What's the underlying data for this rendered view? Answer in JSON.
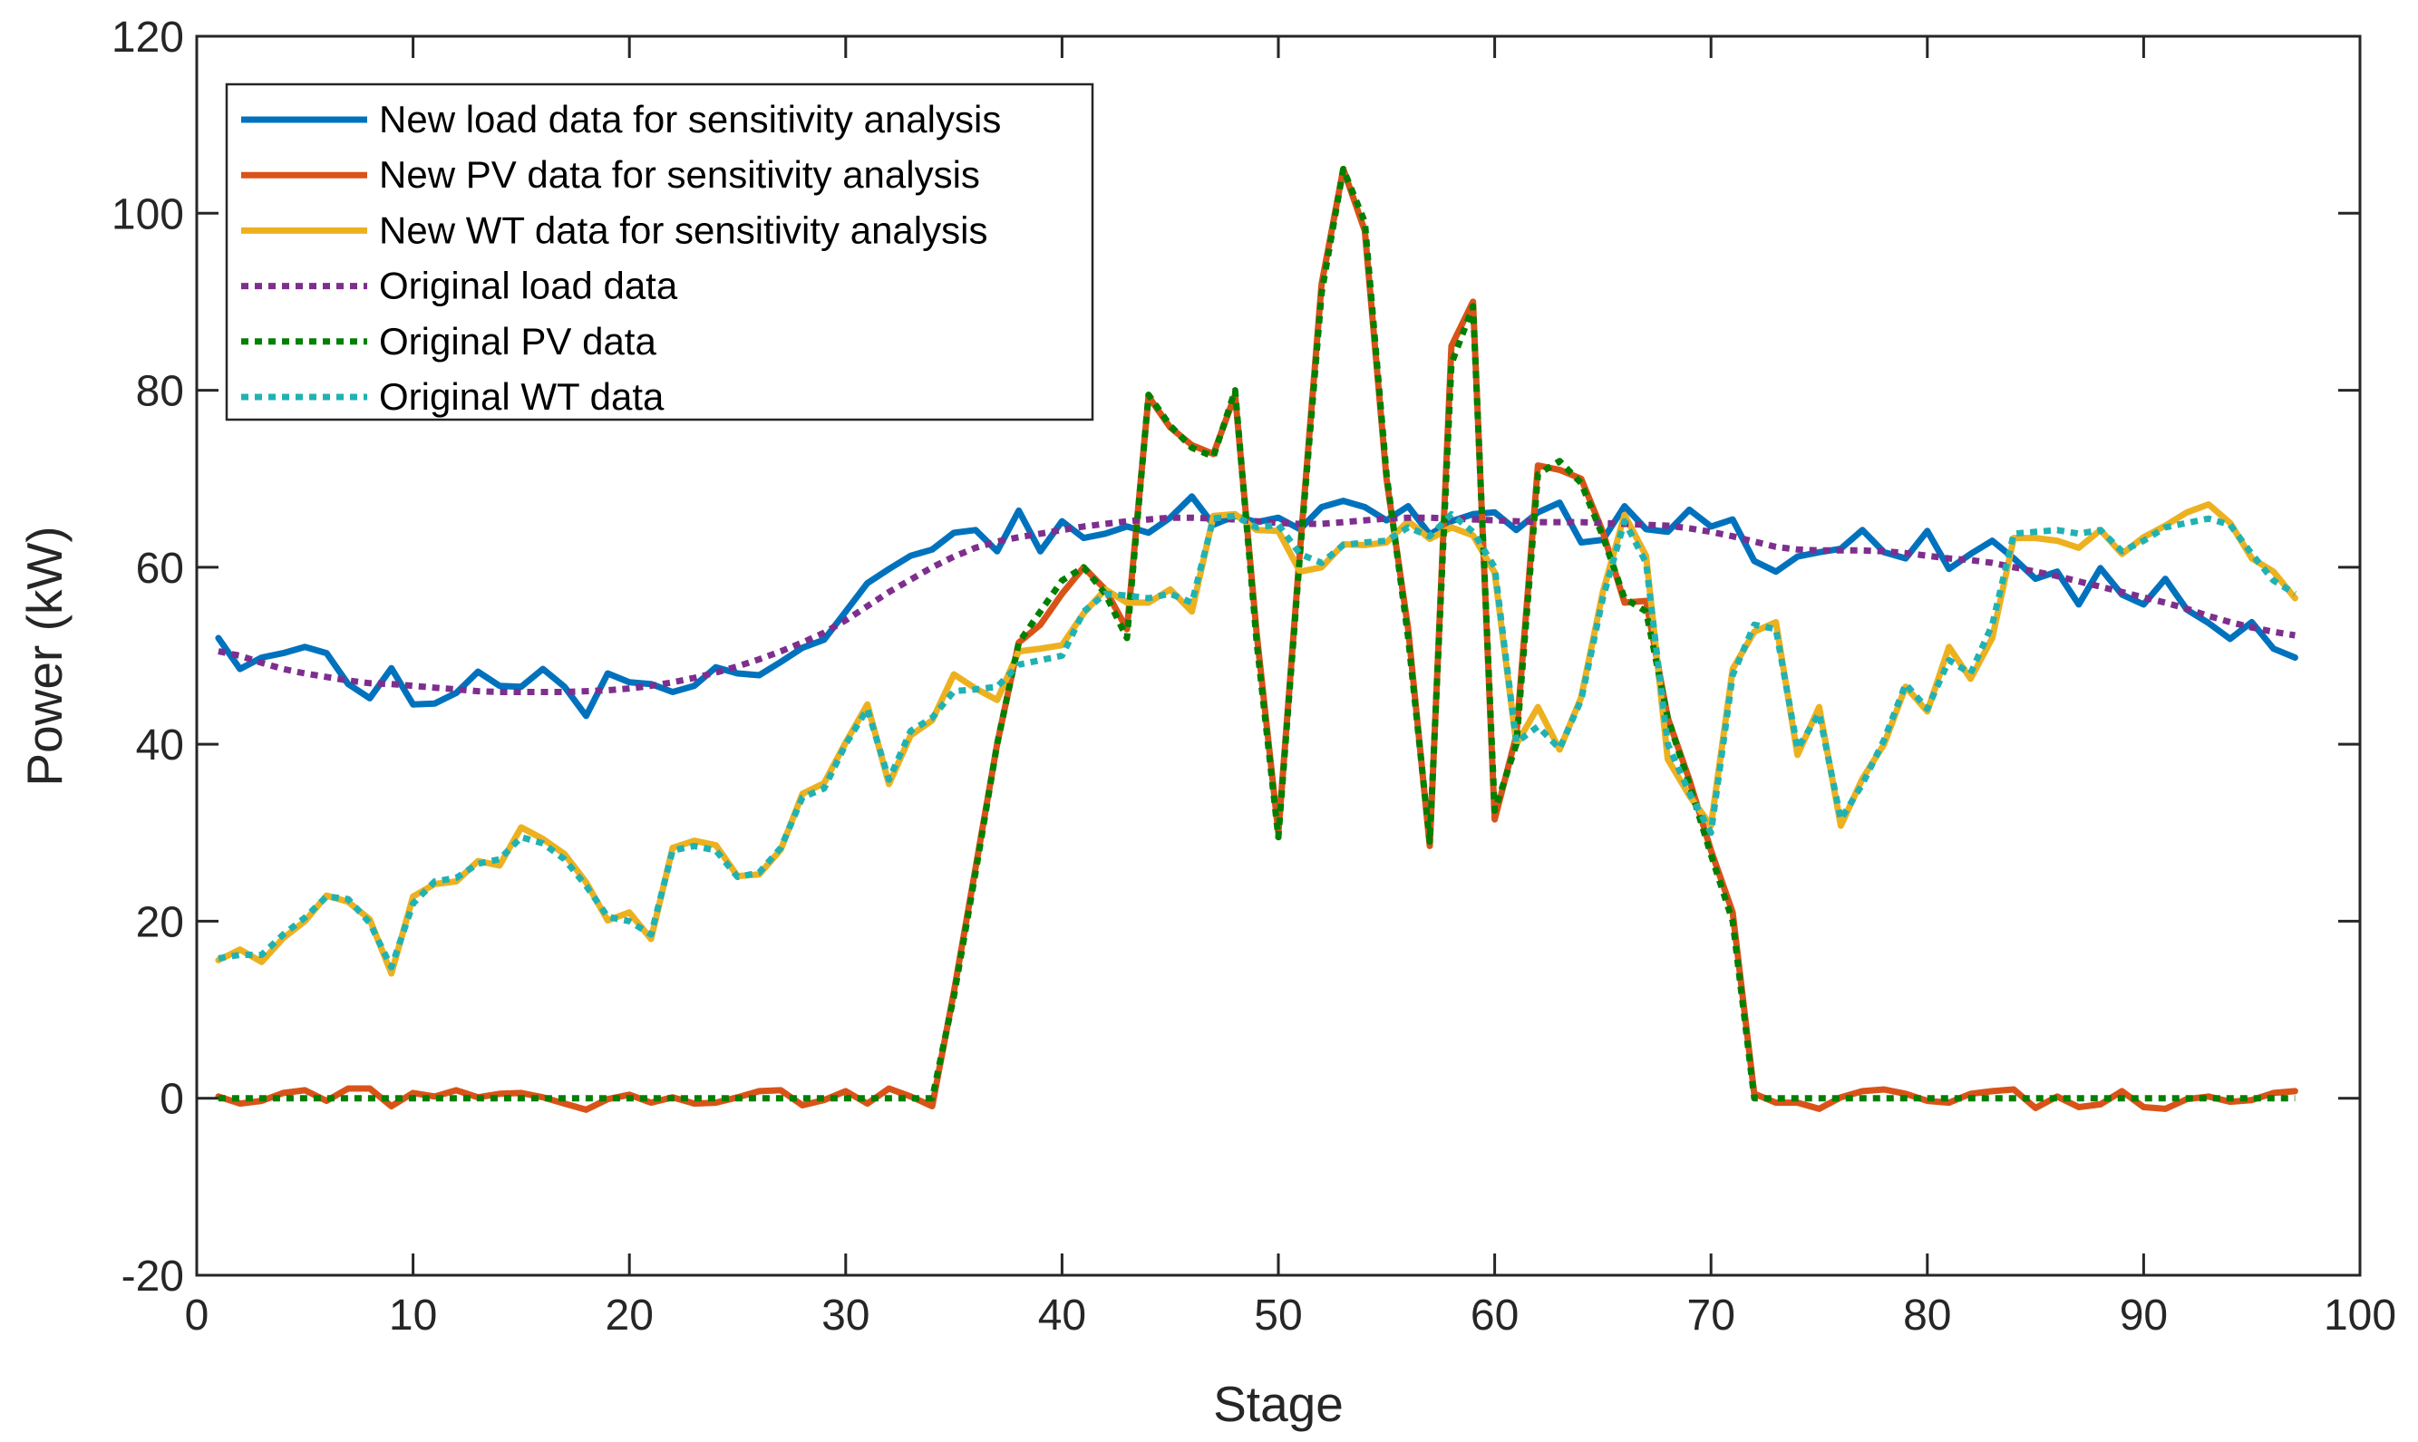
{
  "chart_data": {
    "type": "line",
    "title": "",
    "xlabel": "Stage",
    "ylabel": "Power (kW)",
    "xlim": [
      0,
      100
    ],
    "ylim": [
      -20,
      120
    ],
    "xticks": [
      0,
      10,
      20,
      30,
      40,
      50,
      60,
      70,
      80,
      90,
      100
    ],
    "yticks": [
      -20,
      0,
      20,
      40,
      60,
      80,
      100,
      120
    ],
    "grid": false,
    "legend_position": "top-left",
    "x": [
      1,
      2,
      3,
      4,
      5,
      6,
      7,
      8,
      9,
      10,
      11,
      12,
      13,
      14,
      15,
      16,
      17,
      18,
      19,
      20,
      21,
      22,
      23,
      24,
      25,
      26,
      27,
      28,
      29,
      30,
      31,
      32,
      33,
      34,
      35,
      36,
      37,
      38,
      39,
      40,
      41,
      42,
      43,
      44,
      45,
      46,
      47,
      48,
      49,
      50,
      51,
      52,
      53,
      54,
      55,
      56,
      57,
      58,
      59,
      60,
      61,
      62,
      63,
      64,
      65,
      66,
      67,
      68,
      69,
      70,
      71,
      72,
      73,
      74,
      75,
      76,
      77,
      78,
      79,
      80,
      81,
      82,
      83,
      84,
      85,
      86,
      87,
      88,
      89,
      90,
      91,
      92,
      93,
      94,
      95,
      96,
      97
    ],
    "series": [
      {
        "name": "New load data for sensitivity analysis",
        "color": "#0072BD",
        "style": "solid",
        "values": [
          52.0,
          48.5,
          49.8,
          50.3,
          51.0,
          50.3,
          46.8,
          45.2,
          48.6,
          44.5,
          44.6,
          45.8,
          48.2,
          46.6,
          46.5,
          48.5,
          46.5,
          43.2,
          48.0,
          47.0,
          46.8,
          45.9,
          46.6,
          48.7,
          48.0,
          47.8,
          49.3,
          50.9,
          51.8,
          55.0,
          58.2,
          59.8,
          61.3,
          62.0,
          63.9,
          64.2,
          61.8,
          66.4,
          61.8,
          65.2,
          63.3,
          63.8,
          64.6,
          63.9,
          65.6,
          68.0,
          64.8,
          65.8,
          65.1,
          65.6,
          64.3,
          66.8,
          67.5,
          66.8,
          65.3,
          66.9,
          63.7,
          65.2,
          66.0,
          66.2,
          64.2,
          66.2,
          67.3,
          62.8,
          63.1,
          66.9,
          64.3,
          64.0,
          66.5,
          64.6,
          65.4,
          60.7,
          59.5,
          61.2,
          61.7,
          62.1,
          64.2,
          61.7,
          61.0,
          64.1,
          59.8,
          61.5,
          63.0,
          61.0,
          58.7,
          59.5,
          55.8,
          59.9,
          56.9,
          55.8,
          58.7,
          55.2,
          53.7,
          51.9,
          53.8,
          50.8,
          49.8
        ]
      },
      {
        "name": "New PV data for sensitivity analysis",
        "color": "#D95319",
        "style": "solid",
        "values": [
          0.2,
          -0.6,
          -0.3,
          0.6,
          0.9,
          -0.3,
          1.1,
          1.1,
          -0.9,
          0.6,
          0.2,
          0.9,
          0.1,
          0.5,
          0.6,
          0.1,
          -0.6,
          -1.3,
          -0.1,
          0.4,
          -0.5,
          0.1,
          -0.6,
          -0.5,
          0.1,
          0.8,
          0.9,
          -0.8,
          -0.2,
          0.8,
          -0.6,
          1.1,
          0.2,
          -0.9,
          12.0,
          26.0,
          40.0,
          51.5,
          53.5,
          57.0,
          60.0,
          57.5,
          53.0,
          79.3,
          75.8,
          73.8,
          72.8,
          79.5,
          52.5,
          30.0,
          62.0,
          92.0,
          105.0,
          98.0,
          70.0,
          53.0,
          28.5,
          85.0,
          90.0,
          31.5,
          41.0,
          71.5,
          71.0,
          70.0,
          64.0,
          56.0,
          56.2,
          43.0,
          36.0,
          28.0,
          21.0,
          0.5,
          -0.5,
          -0.5,
          -1.2,
          0.1,
          0.8,
          1.0,
          0.5,
          -0.3,
          -0.5,
          0.5,
          0.8,
          1.0,
          -1.1,
          0.2,
          -1.0,
          -0.7,
          0.8,
          -1.0,
          -1.2,
          -0.1,
          0.2,
          -0.4,
          -0.2,
          0.6,
          0.8
        ]
      },
      {
        "name": "New WT data for sensitivity analysis",
        "color": "#EDB120",
        "style": "solid",
        "values": [
          15.6,
          16.8,
          15.4,
          18.1,
          20.0,
          22.9,
          22.2,
          20.2,
          14.1,
          22.8,
          24.2,
          24.5,
          26.8,
          26.3,
          30.6,
          29.3,
          27.6,
          24.4,
          20.1,
          21.0,
          18.0,
          28.3,
          29.1,
          28.6,
          25.1,
          25.3,
          28.1,
          34.4,
          35.6,
          40.2,
          44.5,
          35.5,
          41.0,
          42.7,
          47.9,
          46.3,
          45.0,
          50.5,
          50.8,
          51.2,
          54.8,
          57.5,
          56.0,
          56.0,
          57.5,
          55.0,
          65.8,
          66.0,
          64.2,
          64.1,
          59.5,
          60.0,
          62.6,
          62.5,
          62.8,
          65.2,
          63.2,
          64.5,
          63.6,
          59.4,
          40.0,
          44.2,
          39.4,
          45.3,
          57.2,
          65.9,
          61.3,
          38.3,
          34.2,
          30.8,
          48.5,
          52.7,
          53.8,
          38.8,
          44.2,
          30.8,
          36.1,
          40.0,
          46.5,
          43.7,
          51.0,
          47.4,
          52.0,
          63.3,
          63.3,
          63.0,
          62.2,
          64.2,
          61.5,
          63.4,
          64.7,
          66.2,
          67.1,
          65.0,
          61.0,
          59.5,
          56.5
        ]
      },
      {
        "name": "Original load data",
        "color": "#7E2F8E",
        "style": "dotted",
        "values": [
          50.5,
          50.0,
          49.2,
          48.5,
          48.0,
          47.6,
          47.2,
          46.9,
          46.8,
          46.6,
          46.4,
          46.2,
          46.0,
          45.9,
          45.9,
          45.9,
          45.9,
          46.0,
          46.1,
          46.3,
          46.6,
          47.0,
          47.5,
          48.1,
          48.8,
          49.6,
          50.5,
          51.5,
          52.6,
          54.0,
          55.6,
          57.2,
          58.6,
          60.0,
          61.2,
          62.2,
          62.9,
          63.4,
          63.8,
          64.2,
          64.6,
          64.9,
          65.2,
          65.4,
          65.6,
          65.6,
          65.5,
          65.4,
          65.2,
          65.0,
          64.9,
          64.9,
          65.1,
          65.3,
          65.5,
          65.6,
          65.6,
          65.5,
          65.4,
          65.3,
          65.2,
          65.1,
          65.1,
          65.1,
          65.0,
          64.9,
          64.8,
          64.7,
          64.4,
          64.0,
          63.5,
          62.9,
          62.3,
          62.0,
          61.9,
          61.9,
          61.9,
          61.8,
          61.6,
          61.3,
          61.0,
          60.8,
          60.5,
          60.0,
          59.5,
          59.0,
          58.4,
          57.8,
          57.2,
          56.6,
          56.0,
          55.3,
          54.5,
          53.8,
          53.2,
          52.7,
          52.3
        ]
      },
      {
        "name": "Original PV data",
        "color": "#008000",
        "style": "dotted",
        "values": [
          0,
          0,
          0,
          0,
          0,
          0,
          0,
          0,
          0,
          0,
          0,
          0,
          0,
          0,
          0,
          0,
          0,
          0,
          0,
          0,
          0,
          0,
          0,
          0,
          0,
          0,
          0,
          0,
          0,
          0,
          0,
          0,
          0,
          0,
          11.5,
          25.5,
          40.0,
          51.5,
          55.0,
          58.5,
          60.0,
          57.0,
          52.0,
          79.5,
          76.0,
          73.5,
          72.5,
          80.0,
          51.5,
          29.5,
          61.5,
          91.0,
          105.0,
          99.0,
          70.5,
          52.0,
          29.0,
          83.0,
          89.5,
          32.5,
          40.0,
          70.5,
          72.0,
          69.5,
          63.5,
          56.5,
          55.0,
          43.0,
          35.5,
          27.5,
          20.0,
          0,
          0,
          0,
          0,
          0,
          0,
          0,
          0,
          0,
          0,
          0,
          0,
          0,
          0,
          0,
          0,
          0,
          0,
          0,
          0,
          0,
          0,
          0,
          0,
          0,
          0
        ]
      },
      {
        "name": "Original WT data",
        "color": "#20B2B2",
        "style": "dotted",
        "values": [
          15.8,
          16.2,
          16.2,
          18.5,
          20.4,
          22.8,
          22.5,
          19.8,
          14.8,
          22.0,
          24.5,
          24.9,
          26.5,
          27.0,
          29.5,
          28.8,
          27.0,
          24.0,
          20.5,
          20.0,
          18.5,
          28.0,
          28.5,
          28.0,
          25.0,
          25.5,
          28.3,
          34.0,
          35.0,
          40.0,
          44.0,
          36.0,
          41.5,
          43.0,
          46.0,
          46.2,
          46.5,
          49.0,
          49.5,
          50.0,
          55.0,
          57.0,
          56.8,
          56.5,
          57.0,
          56.0,
          65.5,
          65.8,
          64.5,
          64.8,
          61.5,
          60.5,
          62.5,
          62.8,
          63.0,
          64.5,
          63.5,
          66.0,
          64.0,
          60.0,
          40.2,
          42.0,
          39.5,
          45.0,
          56.5,
          65.2,
          60.5,
          40.0,
          34.5,
          30.0,
          47.8,
          53.5,
          53.0,
          39.5,
          43.5,
          31.5,
          35.5,
          40.5,
          46.8,
          44.0,
          49.5,
          48.0,
          53.5,
          63.8,
          64.0,
          64.2,
          63.8,
          64.2,
          61.8,
          63.0,
          64.5,
          65.0,
          65.5,
          64.8,
          61.5,
          58.5,
          57.0
        ]
      }
    ]
  }
}
